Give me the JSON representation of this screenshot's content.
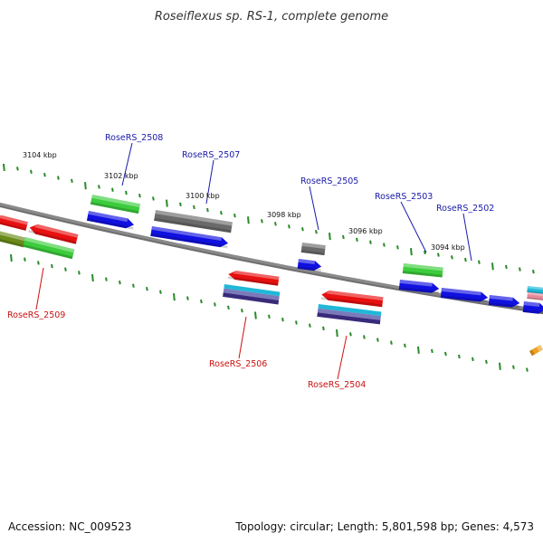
{
  "title": "Roseiflexus sp. RS-1, complete genome",
  "footer": {
    "accession": "Accession: NC_009523",
    "summary": "Topology: circular; Length: 5,801,598 bp; Genes: 4,573"
  },
  "colors": {
    "background": "#ffffff",
    "backbone": "#8a8a8a",
    "tick": "#2a8a2a",
    "label_forward": "#1a1aa8",
    "label_reverse": "#cc1111",
    "leader_forward": "#1a1aa8",
    "leader_reverse": "#cc1111"
  },
  "scale_labels": [
    "3104 kbp",
    "3102 kbp",
    "3100 kbp",
    "3098 kbp",
    "3096 kbp",
    "3094 kbp"
  ],
  "gene_labels": {
    "forward": [
      "RoseRS_2508",
      "RoseRS_2507",
      "RoseRS_2505",
      "RoseRS_2503",
      "RoseRS_2502"
    ],
    "reverse": [
      "RoseRS_2509",
      "RoseRS_2506",
      "RoseRS_2504"
    ]
  },
  "feature_colors": {
    "blue": "#1010e0",
    "red": "#e81010",
    "green": "#3ccc3c",
    "gray": "#6a6a6a",
    "olive": "#6a8a1a",
    "cyan": "#20b8d8",
    "purple": "#5a4a9a",
    "pink": "#e88a9a",
    "orange": "#f0a020"
  }
}
